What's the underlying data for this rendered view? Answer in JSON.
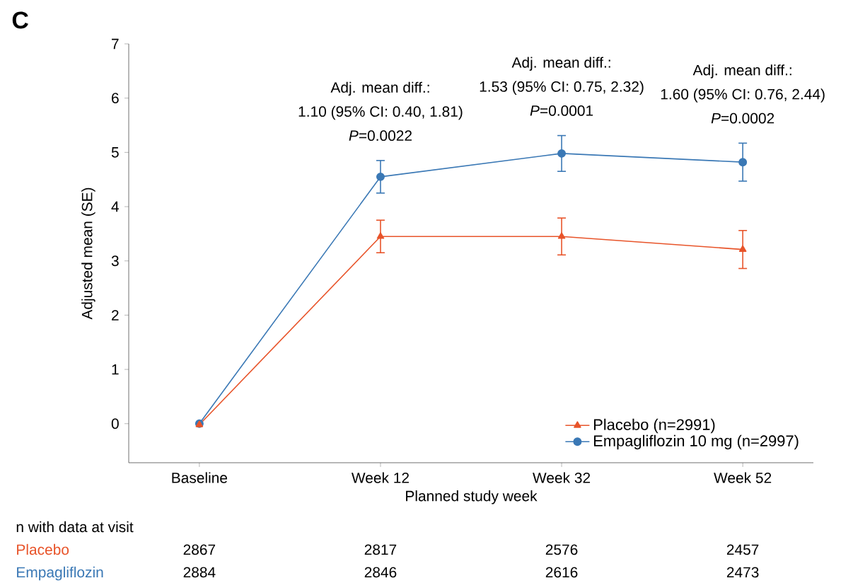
{
  "chart_data": {
    "type": "line",
    "title": "C",
    "xlabel": "Planned study week",
    "ylabel": "Adjusted mean (SE)",
    "categories": [
      "Baseline",
      "Week 12",
      "Week 32",
      "Week 52"
    ],
    "ylim": [
      -0.72,
      7
    ],
    "yticks": [
      0,
      1,
      2,
      3,
      4,
      5,
      6,
      7
    ],
    "series": [
      {
        "name": "Placebo (n=2991)",
        "color": "#e8542a",
        "marker": "triangle",
        "values": [
          -0.02,
          3.45,
          3.45,
          3.21
        ],
        "errors": [
          null,
          0.3,
          0.34,
          0.35
        ]
      },
      {
        "name": "Empagliflozin 10 mg (n=2997)",
        "color": "#3a78b5",
        "marker": "circle",
        "values": [
          0,
          4.55,
          4.98,
          4.82
        ],
        "errors": [
          null,
          0.3,
          0.33,
          0.35
        ]
      }
    ],
    "legend": "bottom right",
    "line_style": "solid",
    "annotations": [
      "Adj. mean diff.:",
      "1.10 (95% CI: 0.40, 1.81)",
      "*P*=0.0022",
      "Adj. mean diff.:",
      "1.53 (95% CI: 0.75, 2.32)",
      "*P*=0.0001",
      "Adj. mean diff.:",
      "1.60 (95% CI: 0.76, 2.44)",
      "*P*=0.0002",
      "n with data at visit",
      "Placebo",
      "2867",
      "2817",
      "2576",
      "2457",
      "Empagliflozin",
      "2884",
      "2846",
      "2616",
      "2473"
    ]
  }
}
